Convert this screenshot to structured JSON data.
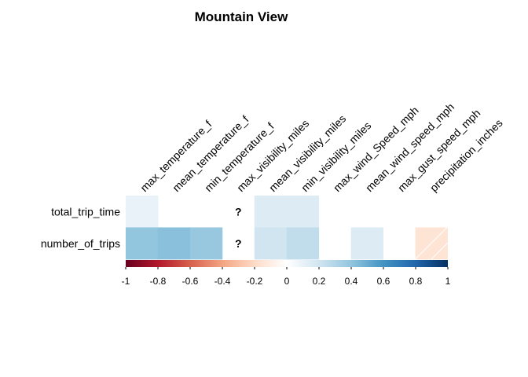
{
  "chart_data": {
    "type": "heatmap",
    "title": "Mountain View",
    "columns": [
      "max_temperature_f",
      "mean_temperature_f",
      "min_temperature_f",
      "max_visibility_miles",
      "mean_visibility_miles",
      "min_visibility_miles",
      "max_wind_Speed_mph",
      "mean_wind_speed_mph",
      "max_gust_speed_mph",
      "precipitation_inches"
    ],
    "rows": [
      "total_trip_time",
      "number_of_trips"
    ],
    "values": [
      [
        0.1,
        null,
        null,
        "?",
        0.15,
        0.15,
        null,
        null,
        null,
        null
      ],
      [
        0.4,
        0.42,
        0.38,
        "?",
        0.2,
        0.25,
        null,
        0.15,
        null,
        -0.15
      ]
    ],
    "na_label": "?",
    "colorbar": {
      "ticks": [
        "-1",
        "-0.8",
        "-0.6",
        "-0.4",
        "-0.2",
        "0",
        "0.2",
        "0.4",
        "0.6",
        "0.8",
        "1"
      ],
      "range": [
        -1,
        1
      ],
      "colors": [
        "#67001F",
        "#B2182B",
        "#D6604D",
        "#F4A582",
        "#FDDBC7",
        "#FFFFFF",
        "#D1E5F0",
        "#92C5DE",
        "#4393C3",
        "#2166AC",
        "#053061"
      ]
    }
  }
}
